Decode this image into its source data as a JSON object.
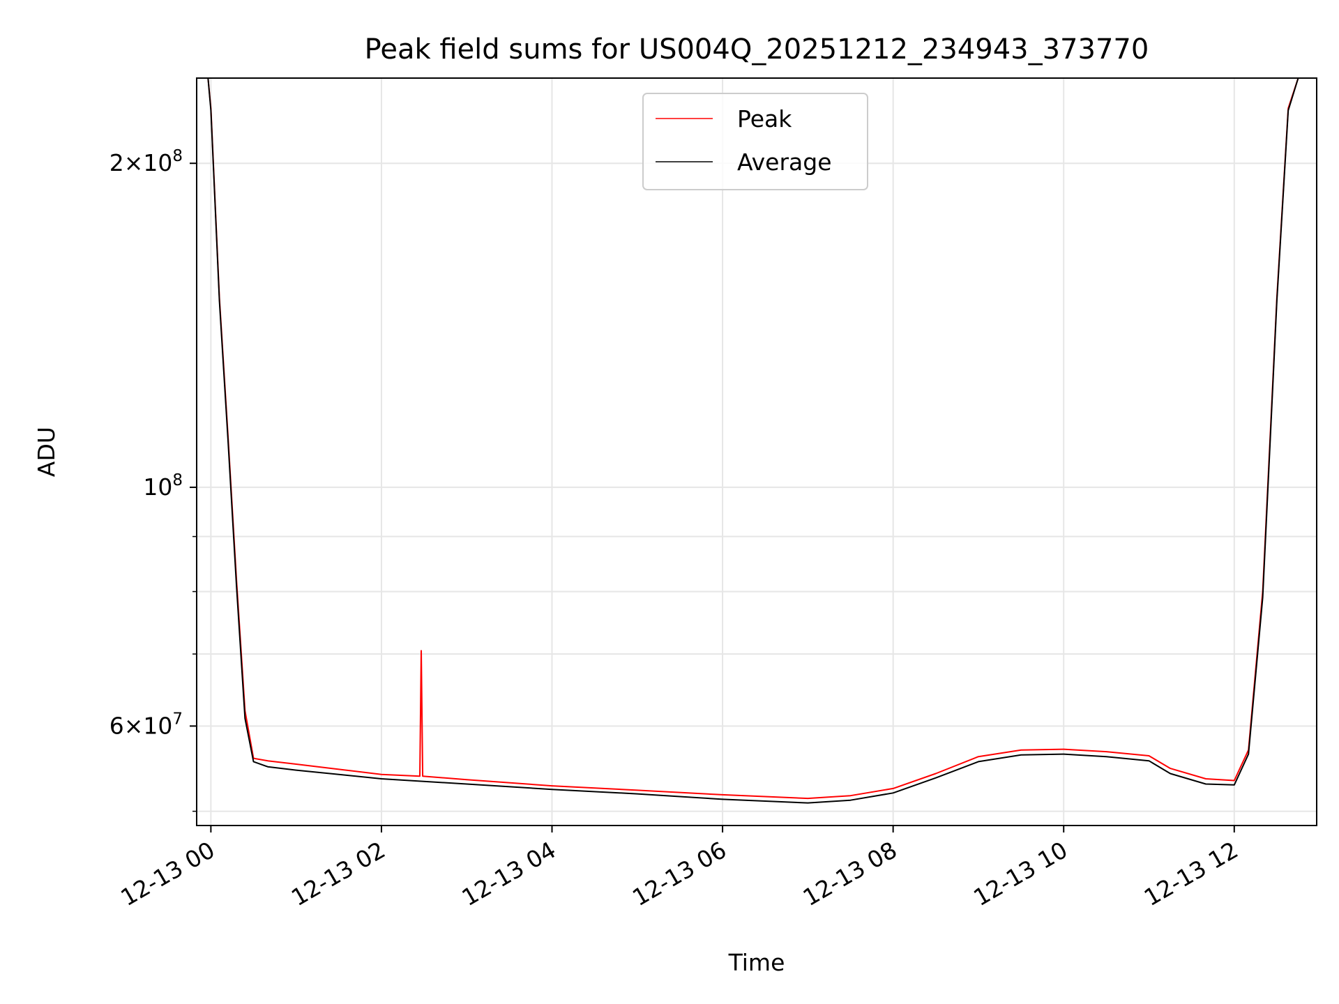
{
  "chart_data": {
    "type": "line",
    "title": "Peak field sums for US004Q_20251212_234943_373770",
    "xlabel": "Time",
    "ylabel": "ADU",
    "x_axis": "datetime",
    "y_scale": "log",
    "xlim": [
      "2025-12-12T23:50:00",
      "2025-12-13T12:58:00"
    ],
    "ylim": [
      48500000,
      240000000
    ],
    "grid": true,
    "legend_position": "upper center",
    "x_ticks": [
      {
        "value": "2025-12-13T00:00:00",
        "label": "12-13 00"
      },
      {
        "value": "2025-12-13T02:00:00",
        "label": "12-13 02"
      },
      {
        "value": "2025-12-13T04:00:00",
        "label": "12-13 04"
      },
      {
        "value": "2025-12-13T06:00:00",
        "label": "12-13 06"
      },
      {
        "value": "2025-12-13T08:00:00",
        "label": "12-13 08"
      },
      {
        "value": "2025-12-13T10:00:00",
        "label": "12-13 10"
      },
      {
        "value": "2025-12-13T12:00:00",
        "label": "12-13 12"
      }
    ],
    "y_major_ticks": [
      {
        "value": 60000000,
        "label_mantissa": "6",
        "label_base": "10",
        "label_exp": "7"
      },
      {
        "value": 100000000,
        "label_mantissa": "",
        "label_base": "10",
        "label_exp": "8"
      },
      {
        "value": 200000000,
        "label_mantissa": "2",
        "label_base": "10",
        "label_exp": "8"
      }
    ],
    "y_minor_ticks": [
      50000000,
      70000000,
      80000000,
      90000000
    ],
    "series": [
      {
        "name": "Peak",
        "color": "#ff0000",
        "points": [
          [
            "2025-12-12T23:50:00",
            240000000
          ],
          [
            "2025-12-12T23:58:00",
            240000000
          ],
          [
            "2025-12-13T00:00:00",
            225000000
          ],
          [
            "2025-12-13T00:06:00",
            150000000
          ],
          [
            "2025-12-13T00:12:00",
            112000000
          ],
          [
            "2025-12-13T00:18:00",
            82000000
          ],
          [
            "2025-12-13T00:24:00",
            62000000
          ],
          [
            "2025-12-13T00:30:00",
            56000000
          ],
          [
            "2025-12-13T00:40:00",
            55700000
          ],
          [
            "2025-12-13T01:00:00",
            55300000
          ],
          [
            "2025-12-13T01:30:00",
            54700000
          ],
          [
            "2025-12-13T02:00:00",
            54100000
          ],
          [
            "2025-12-13T02:27:00",
            53900000
          ],
          [
            "2025-12-13T02:28:00",
            70500000
          ],
          [
            "2025-12-13T02:29:00",
            53900000
          ],
          [
            "2025-12-13T03:00:00",
            53500000
          ],
          [
            "2025-12-13T04:00:00",
            52800000
          ],
          [
            "2025-12-13T05:00:00",
            52300000
          ],
          [
            "2025-12-13T06:00:00",
            51800000
          ],
          [
            "2025-12-13T07:00:00",
            51400000
          ],
          [
            "2025-12-13T07:30:00",
            51700000
          ],
          [
            "2025-12-13T08:00:00",
            52500000
          ],
          [
            "2025-12-13T08:30:00",
            54200000
          ],
          [
            "2025-12-13T09:00:00",
            56200000
          ],
          [
            "2025-12-13T09:30:00",
            57000000
          ],
          [
            "2025-12-13T10:00:00",
            57100000
          ],
          [
            "2025-12-13T10:30:00",
            56800000
          ],
          [
            "2025-12-13T11:00:00",
            56300000
          ],
          [
            "2025-12-13T11:15:00",
            54800000
          ],
          [
            "2025-12-13T11:40:00",
            53600000
          ],
          [
            "2025-12-13T12:00:00",
            53400000
          ],
          [
            "2025-12-13T12:10:00",
            57000000
          ],
          [
            "2025-12-13T12:20:00",
            80000000
          ],
          [
            "2025-12-13T12:30:00",
            150000000
          ],
          [
            "2025-12-13T12:38:00",
            225000000
          ],
          [
            "2025-12-13T12:45:00",
            240000000
          ],
          [
            "2025-12-13T12:58:00",
            240000000
          ]
        ]
      },
      {
        "name": "Average",
        "color": "#000000",
        "points": [
          [
            "2025-12-12T23:50:00",
            240000000
          ],
          [
            "2025-12-12T23:58:00",
            240000000
          ],
          [
            "2025-12-13T00:00:00",
            224000000
          ],
          [
            "2025-12-13T00:06:00",
            149000000
          ],
          [
            "2025-12-13T00:12:00",
            111000000
          ],
          [
            "2025-12-13T00:18:00",
            81000000
          ],
          [
            "2025-12-13T00:24:00",
            61000000
          ],
          [
            "2025-12-13T00:30:00",
            55600000
          ],
          [
            "2025-12-13T00:40:00",
            55000000
          ],
          [
            "2025-12-13T01:00:00",
            54600000
          ],
          [
            "2025-12-13T01:30:00",
            54100000
          ],
          [
            "2025-12-13T02:00:00",
            53600000
          ],
          [
            "2025-12-13T03:00:00",
            53000000
          ],
          [
            "2025-12-13T04:00:00",
            52400000
          ],
          [
            "2025-12-13T05:00:00",
            51900000
          ],
          [
            "2025-12-13T06:00:00",
            51300000
          ],
          [
            "2025-12-13T07:00:00",
            50900000
          ],
          [
            "2025-12-13T07:30:00",
            51200000
          ],
          [
            "2025-12-13T08:00:00",
            52000000
          ],
          [
            "2025-12-13T08:30:00",
            53700000
          ],
          [
            "2025-12-13T09:00:00",
            55600000
          ],
          [
            "2025-12-13T09:30:00",
            56400000
          ],
          [
            "2025-12-13T10:00:00",
            56500000
          ],
          [
            "2025-12-13T10:30:00",
            56200000
          ],
          [
            "2025-12-13T11:00:00",
            55700000
          ],
          [
            "2025-12-13T11:15:00",
            54200000
          ],
          [
            "2025-12-13T11:40:00",
            53000000
          ],
          [
            "2025-12-13T12:00:00",
            52900000
          ],
          [
            "2025-12-13T12:10:00",
            56500000
          ],
          [
            "2025-12-13T12:20:00",
            79000000
          ],
          [
            "2025-12-13T12:30:00",
            149000000
          ],
          [
            "2025-12-13T12:38:00",
            224000000
          ],
          [
            "2025-12-13T12:45:00",
            240000000
          ],
          [
            "2025-12-13T12:58:00",
            240000000
          ]
        ]
      }
    ]
  }
}
